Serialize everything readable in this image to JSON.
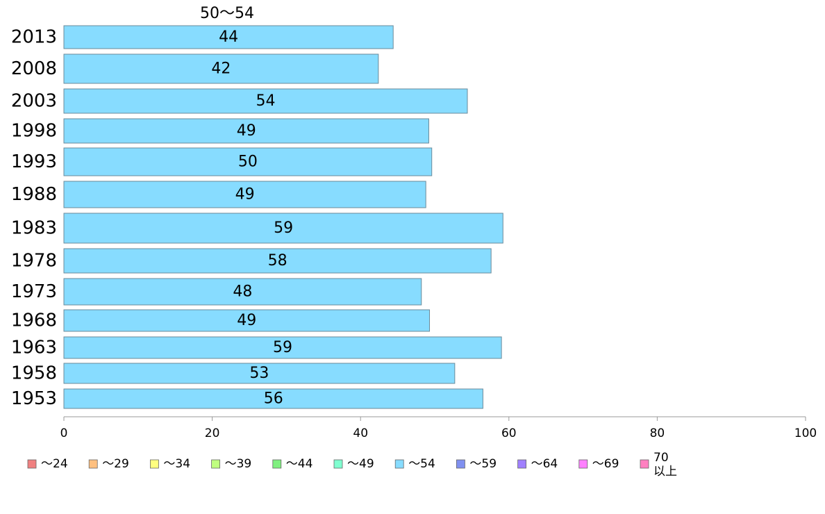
{
  "chart_data": {
    "type": "bar",
    "orientation": "horizontal",
    "title": "50〜54",
    "categories": [
      "2013",
      "2008",
      "2003",
      "1998",
      "1993",
      "1988",
      "1983",
      "1978",
      "1973",
      "1968",
      "1963",
      "1958",
      "1953"
    ],
    "series": [
      {
        "name": "〜54",
        "color": "#87dcff",
        "values": [
          44.4,
          42.4,
          54.4,
          49.2,
          49.6,
          48.8,
          59.2,
          57.6,
          48.2,
          49.3,
          59.0,
          52.7,
          56.5
        ],
        "labels": [
          "44",
          "42",
          "54",
          "49",
          "50",
          "49",
          "59",
          "58",
          "48",
          "49",
          "59",
          "53",
          "56"
        ]
      }
    ],
    "xlim": [
      0,
      100
    ],
    "xticks": [
      "0",
      "20",
      "40",
      "60",
      "80",
      "100"
    ],
    "grid": false,
    "legend_position": "bottom",
    "legend": [
      {
        "label": "〜24",
        "color": "#f08080"
      },
      {
        "label": "〜29",
        "color": "#ffc080"
      },
      {
        "label": "〜34",
        "color": "#ffff80"
      },
      {
        "label": "〜39",
        "color": "#c0ff80"
      },
      {
        "label": "〜44",
        "color": "#80f080"
      },
      {
        "label": "〜49",
        "color": "#80ffd0"
      },
      {
        "label": "〜54",
        "color": "#87dcff"
      },
      {
        "label": "〜59",
        "color": "#8090f0"
      },
      {
        "label": "〜64",
        "color": "#a080ff"
      },
      {
        "label": "〜69",
        "color": "#ff80ff"
      },
      {
        "label": "70\n以上",
        "color": "#ff80c0"
      }
    ]
  }
}
